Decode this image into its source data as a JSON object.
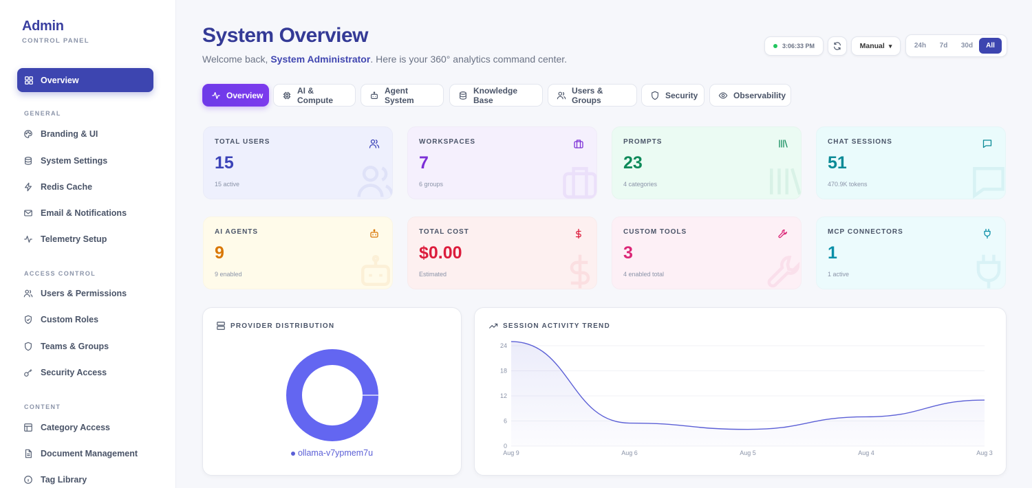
{
  "sidebar": {
    "brand_title": "Admin",
    "brand_sub": "CONTROL PANEL",
    "active_item": "Overview",
    "sections": [
      {
        "label": "GENERAL",
        "items": [
          "Branding & UI",
          "System Settings",
          "Redis Cache",
          "Email & Notifications",
          "Telemetry Setup"
        ]
      },
      {
        "label": "ACCESS CONTROL",
        "items": [
          "Users & Permissions",
          "Custom Roles",
          "Teams & Groups",
          "Security Access"
        ]
      },
      {
        "label": "CONTENT",
        "items": [
          "Category Access",
          "Document Management",
          "Tag Library"
        ]
      }
    ]
  },
  "header": {
    "title": "System Overview",
    "welcome_prefix": "Welcome back, ",
    "user_name": "System Administrator",
    "welcome_suffix": ". Here is your 360° analytics command center.",
    "time": "3:06:33 PM",
    "refresh_mode": "Manual",
    "ranges": [
      "24h",
      "7d",
      "30d",
      "All"
    ],
    "active_range": "All"
  },
  "tabs": [
    "Overview",
    "AI & Compute",
    "Agent System",
    "Knowledge Base",
    "Users & Groups",
    "Security",
    "Observability"
  ],
  "stats": [
    {
      "label": "TOTAL USERS",
      "value": "15",
      "sub": "15 active",
      "icon": "users-icon",
      "color": "#3b43b8",
      "bg": "#eef0fd"
    },
    {
      "label": "WORKSPACES",
      "value": "7",
      "sub": "6 groups",
      "icon": "briefcase-icon",
      "color": "#7c2fd6",
      "bg": "#f5f0fd"
    },
    {
      "label": "PROMPTS",
      "value": "23",
      "sub": "4 categories",
      "icon": "library-icon",
      "color": "#0f8a5a",
      "bg": "#ebfbf3"
    },
    {
      "label": "CHAT SESSIONS",
      "value": "51",
      "sub": "470.9K tokens",
      "icon": "message-icon",
      "color": "#0b8a96",
      "bg": "#eafbfc"
    },
    {
      "label": "AI AGENTS",
      "value": "9",
      "sub": "9 enabled",
      "icon": "bot-icon",
      "color": "#d97706",
      "bg": "#fffbea"
    },
    {
      "label": "TOTAL COST",
      "value": "$0.00",
      "sub": "Estimated",
      "icon": "dollar-icon",
      "color": "#dc1c3c",
      "bg": "#fdf0f0"
    },
    {
      "label": "CUSTOM TOOLS",
      "value": "3",
      "sub": "4 enabled total",
      "icon": "wrench-icon",
      "color": "#db2777",
      "bg": "#fdf0f6"
    },
    {
      "label": "MCP CONNECTORS",
      "value": "1",
      "sub": "1 active",
      "icon": "plug-icon",
      "color": "#0a8fa8",
      "bg": "#ecfbfd"
    }
  ],
  "provider_panel": {
    "title": "PROVIDER DISTRIBUTION",
    "legend": "ollama-v7ypmem7u",
    "color": "#6366f1"
  },
  "trend_panel": {
    "title": "SESSION ACTIVITY TREND"
  },
  "chart_data": [
    {
      "type": "pie",
      "title": "",
      "labels": [
        "ollama-v7ypmem7u"
      ],
      "values": [
        1
      ],
      "colors": [
        "#6366f1"
      ]
    },
    {
      "type": "area",
      "title": "",
      "x": [
        "Aug 9",
        "Aug 6",
        "Aug 5",
        "Aug 4",
        "Aug 3"
      ],
      "y_ticks": [
        "0",
        "6",
        "12",
        "18",
        "24"
      ],
      "ylim": [
        0,
        24
      ],
      "series": [
        {
          "values": [
            25,
            5.5,
            4,
            7,
            11
          ],
          "color": "#5b5fd6"
        }
      ]
    }
  ]
}
